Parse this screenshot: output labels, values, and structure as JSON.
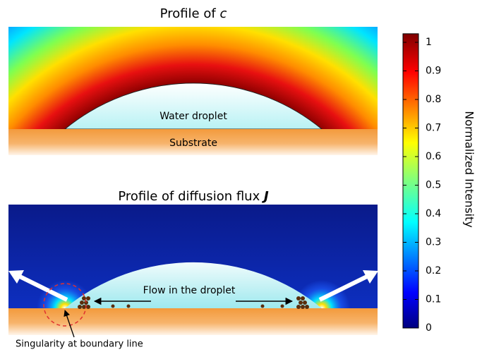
{
  "panels": [
    {
      "title": "Profile of",
      "title_symbol": "c",
      "droplet_label": "Water droplet",
      "substrate_label": "Substrate"
    },
    {
      "title": "Profile of diffusion flux",
      "title_symbol": "J",
      "flow_label": "Flow in the droplet",
      "singularity_label": "Singularity at boundary line"
    }
  ],
  "colorbar": {
    "label": "Normalized Intensity",
    "lim": [
      0,
      1.03
    ],
    "ticks": [
      0,
      0.1,
      0.2,
      0.3,
      0.4,
      0.5,
      0.6,
      0.7,
      0.8,
      0.9,
      1
    ]
  }
}
